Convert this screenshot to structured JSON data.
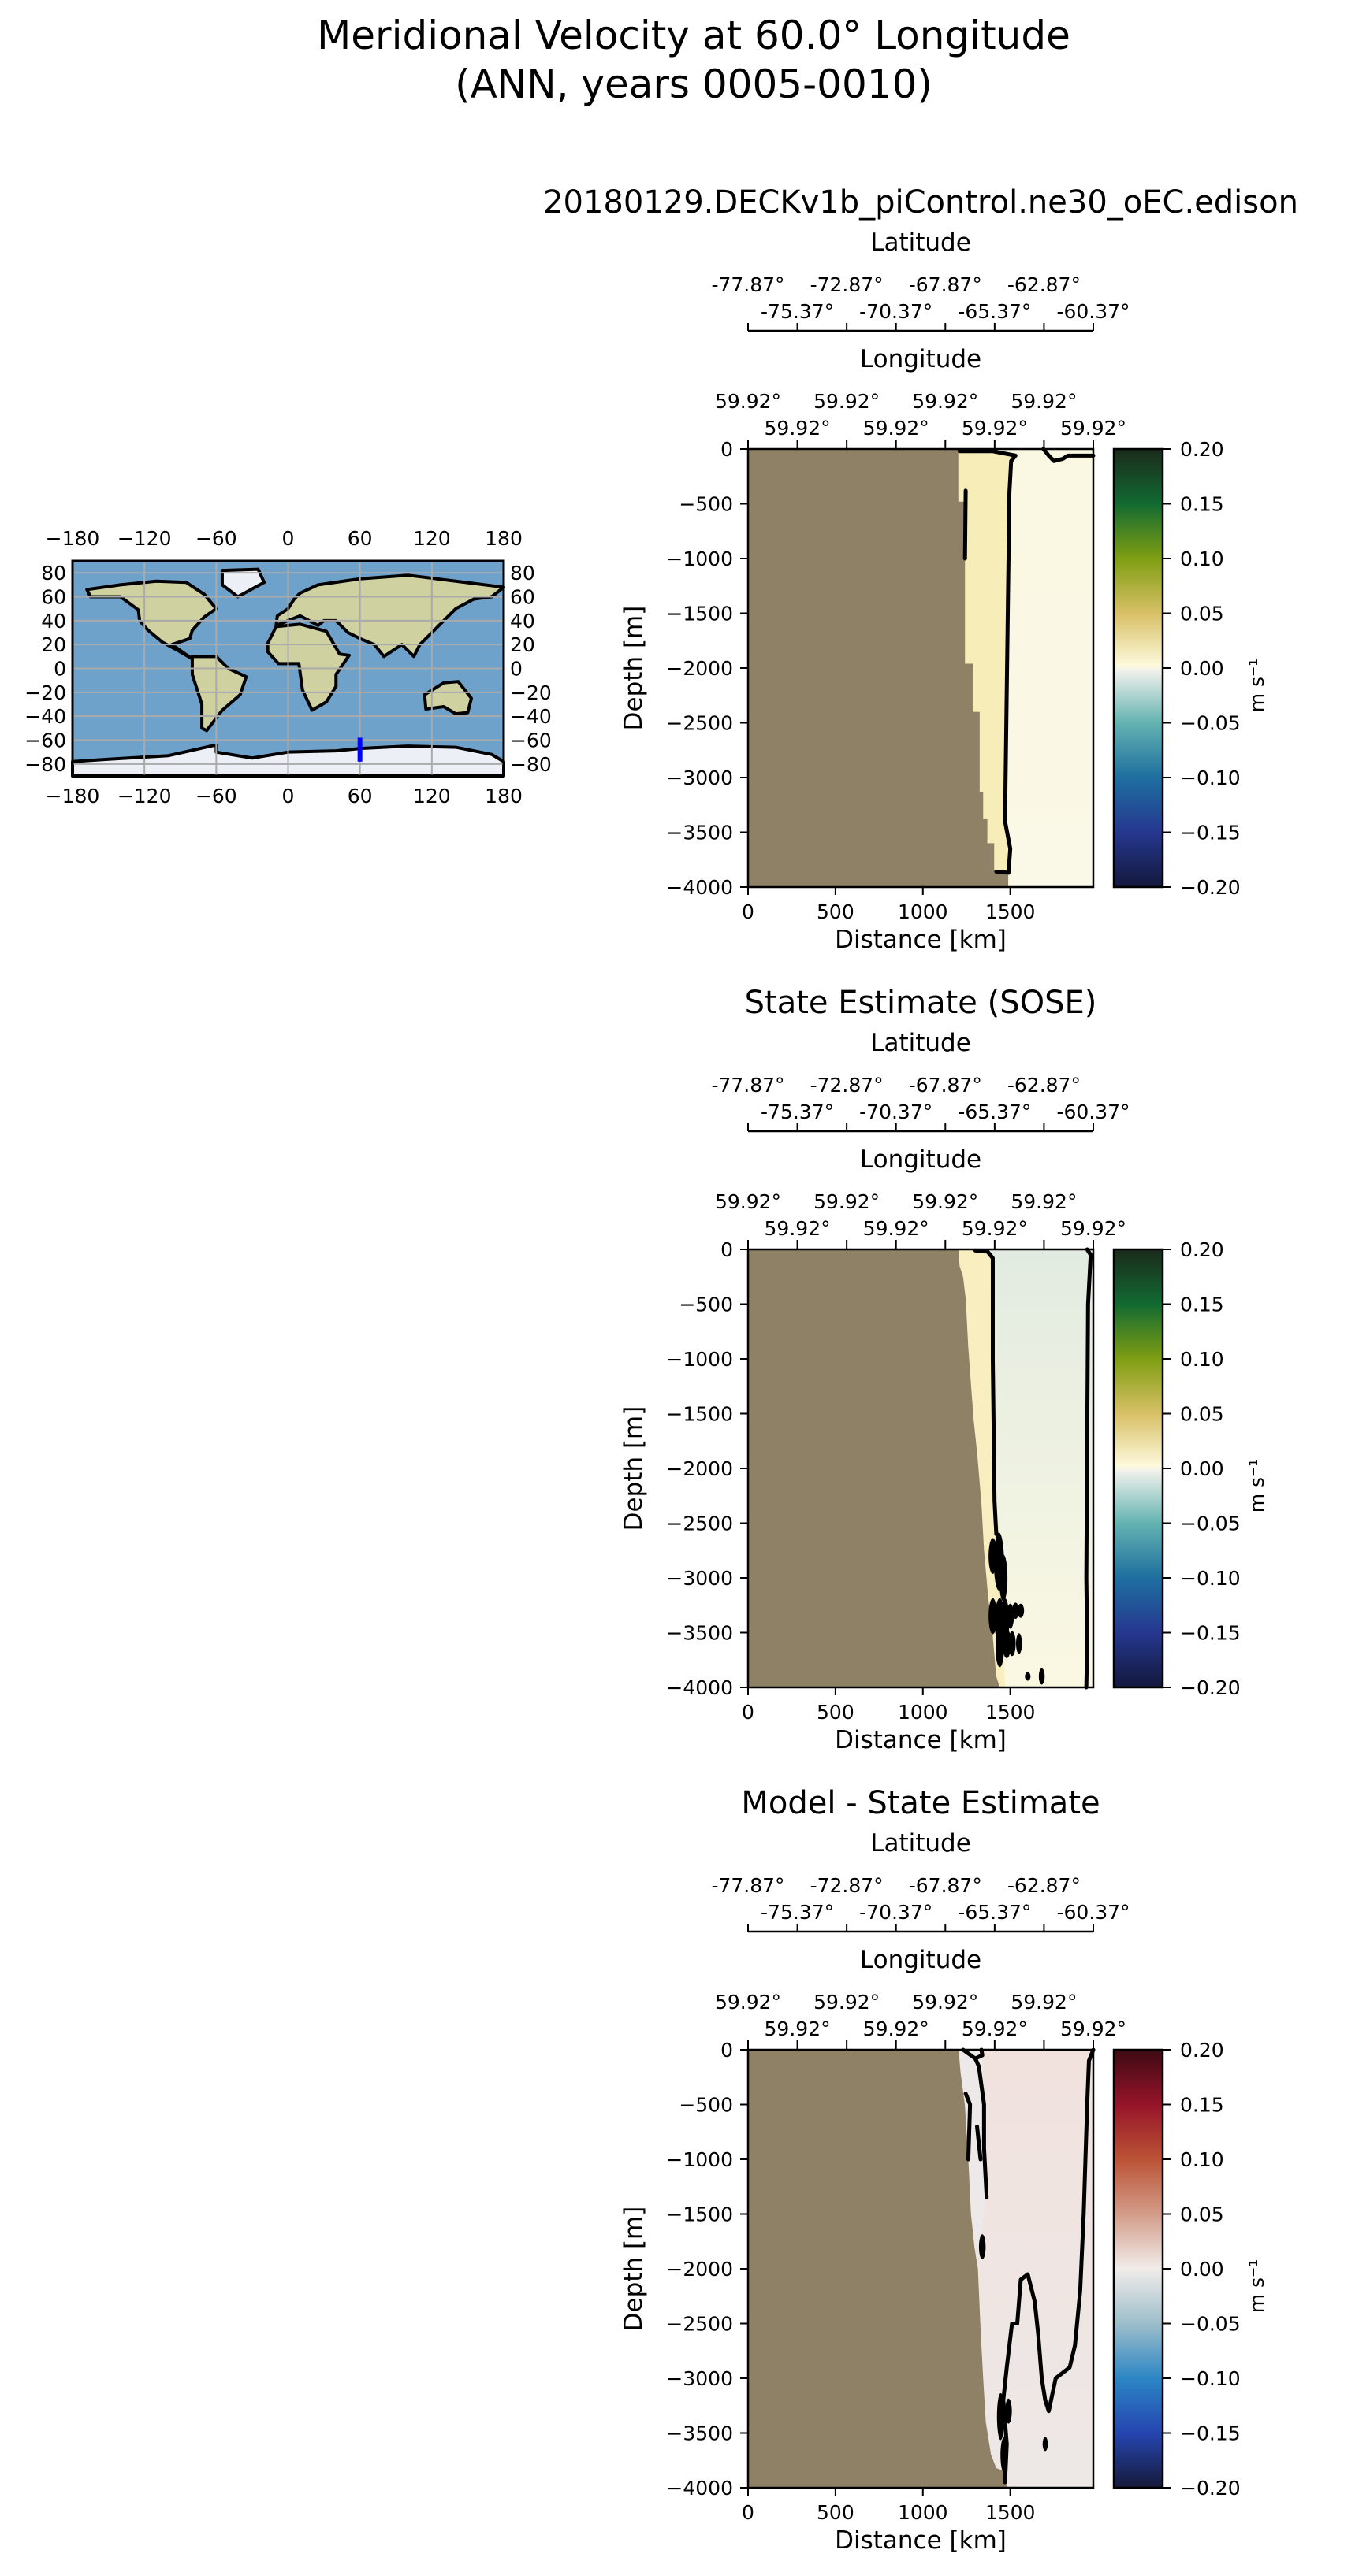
{
  "figure": {
    "title_line1": "Meridional Velocity at 60.0° Longitude",
    "title_line2": "(ANN, years 0005-0010)"
  },
  "chart_data": [
    {
      "type": "map",
      "xticks": [
        "−180",
        "−120",
        "−60",
        "0",
        "60",
        "120",
        "180"
      ],
      "xtick_values": [
        -180,
        -120,
        -60,
        0,
        60,
        120,
        180
      ],
      "yticks": [
        "80",
        "60",
        "40",
        "20",
        "0",
        "−20",
        "−40",
        "−60",
        "−80"
      ],
      "ytick_values": [
        80,
        60,
        40,
        20,
        0,
        -20,
        -40,
        -60,
        -80
      ],
      "xlim": [
        -180,
        180
      ],
      "ylim": [
        -90,
        90
      ],
      "grid": true,
      "section": {
        "lon": 60,
        "lat_start": -58,
        "lat_end": -78,
        "color": "#0000ff"
      }
    },
    {
      "type": "heatmap",
      "title": "20180129.DECKv1b_piControl.ne30_oEC.edison",
      "lat_label": "Latitude",
      "lat_ticks": [
        "-77.87°",
        "-75.37°",
        "-72.87°",
        "-70.37°",
        "-67.87°",
        "-65.37°",
        "-62.87°",
        "-60.37°"
      ],
      "lon_label": "Longitude",
      "lon_ticks": [
        "59.92°",
        "59.92°",
        "59.92°",
        "59.92°",
        "59.92°",
        "59.92°",
        "59.92°",
        "59.92°"
      ],
      "xlabel": "Distance [km]",
      "ylabel": "Depth [m]",
      "xticks": [
        0,
        500,
        1000,
        1500
      ],
      "yticks": [
        0,
        -500,
        -1000,
        -1500,
        -2000,
        -2500,
        -3000,
        -3500,
        -4000
      ],
      "xlim": [
        0,
        1975
      ],
      "ylim": [
        -4000,
        0
      ],
      "colorbar": {
        "label": "m s⁻¹",
        "ticks": [
          "0.20",
          "0.15",
          "0.10",
          "0.05",
          "0.00",
          "−0.05",
          "−0.10",
          "−0.15",
          "−0.20"
        ],
        "range": [
          -0.2,
          0.2
        ],
        "colormap": [
          [
            -0.2,
            "#13183c"
          ],
          [
            -0.15,
            "#26378f"
          ],
          [
            -0.1,
            "#1e6fa0"
          ],
          [
            -0.05,
            "#64b3b1"
          ],
          [
            -0.002,
            "#f1f1ec"
          ],
          [
            0.002,
            "#fdf9dc"
          ],
          [
            0.05,
            "#d8c066"
          ],
          [
            0.1,
            "#7f9e13"
          ],
          [
            0.15,
            "#126a31"
          ],
          [
            0.2,
            "#1b2a1c"
          ]
        ]
      },
      "land_color": "#8f8166",
      "ocean_top_color": "#faf7e2",
      "ocean_bottom_color": "#faf8e6",
      "zone_color": "#f7edb9",
      "land_edge": [
        [
          1203,
          0
        ],
        [
          1203,
          -480
        ],
        [
          1241,
          -480
        ],
        [
          1241,
          -1960
        ],
        [
          1285,
          -1960
        ],
        [
          1285,
          -2400
        ],
        [
          1325,
          -2400
        ],
        [
          1325,
          -3130
        ],
        [
          1345,
          -3130
        ],
        [
          1345,
          -3380
        ],
        [
          1369,
          -3380
        ],
        [
          1369,
          -3600
        ],
        [
          1408,
          -3600
        ],
        [
          1408,
          -3850
        ],
        [
          1488,
          -3850
        ],
        [
          1488,
          -4000
        ]
      ],
      "zone_edge": [
        [
          1400,
          -20
        ],
        [
          1530,
          -60
        ],
        [
          1505,
          -110
        ],
        [
          1495,
          -400
        ],
        [
          1470,
          -3400
        ],
        [
          1500,
          -3650
        ],
        [
          1490,
          -4000
        ]
      ],
      "contours": [
        [
          [
            1210,
            -20
          ],
          [
            1400,
            -20
          ],
          [
            1530,
            -60
          ],
          [
            1505,
            -110
          ],
          [
            1495,
            -400
          ],
          [
            1470,
            -3400
          ],
          [
            1500,
            -3650
          ],
          [
            1490,
            -3870
          ],
          [
            1420,
            -3860
          ]
        ],
        [
          [
            1690,
            0
          ],
          [
            1720,
            -60
          ],
          [
            1750,
            -110
          ],
          [
            1800,
            -90
          ],
          [
            1830,
            -60
          ],
          [
            1975,
            -60
          ]
        ],
        [
          [
            1241,
            -1000
          ],
          [
            1245,
            -380
          ]
        ]
      ],
      "blobs": []
    },
    {
      "type": "heatmap",
      "title": "State Estimate (SOSE)",
      "lat_label": "Latitude",
      "lat_ticks": [
        "-77.87°",
        "-75.37°",
        "-72.87°",
        "-70.37°",
        "-67.87°",
        "-65.37°",
        "-62.87°",
        "-60.37°"
      ],
      "lon_label": "Longitude",
      "lon_ticks": [
        "59.92°",
        "59.92°",
        "59.92°",
        "59.92°",
        "59.92°",
        "59.92°",
        "59.92°",
        "59.92°"
      ],
      "xlabel": "Distance [km]",
      "ylabel": "Depth [m]",
      "xticks": [
        0,
        500,
        1000,
        1500
      ],
      "yticks": [
        0,
        -500,
        -1000,
        -1500,
        -2000,
        -2500,
        -3000,
        -3500,
        -4000
      ],
      "xlim": [
        0,
        1975
      ],
      "ylim": [
        -4000,
        0
      ],
      "colorbar": {
        "label": "m s⁻¹",
        "ticks": [
          "0.20",
          "0.15",
          "0.10",
          "0.05",
          "0.00",
          "−0.05",
          "−0.10",
          "−0.15",
          "−0.20"
        ],
        "range": [
          -0.2,
          0.2
        ],
        "colormap": [
          [
            -0.2,
            "#13183c"
          ],
          [
            -0.15,
            "#26378f"
          ],
          [
            -0.1,
            "#1e6fa0"
          ],
          [
            -0.05,
            "#64b3b1"
          ],
          [
            -0.002,
            "#f1f1ec"
          ],
          [
            0.002,
            "#fdf9dc"
          ],
          [
            0.05,
            "#d8c066"
          ],
          [
            0.1,
            "#7f9e13"
          ],
          [
            0.15,
            "#126a31"
          ],
          [
            0.2,
            "#1b2a1c"
          ]
        ]
      },
      "land_color": "#8f8166",
      "ocean_top_color": "#e2ebe1",
      "ocean_bottom_color": "#fbf8e2",
      "zone_color": "#f8eec0",
      "land_edge": [
        [
          1204,
          0
        ],
        [
          1210,
          -150
        ],
        [
          1230,
          -250
        ],
        [
          1245,
          -450
        ],
        [
          1260,
          -900
        ],
        [
          1276,
          -1250
        ],
        [
          1290,
          -1550
        ],
        [
          1310,
          -1850
        ],
        [
          1335,
          -2320
        ],
        [
          1350,
          -2750
        ],
        [
          1375,
          -3200
        ],
        [
          1395,
          -3450
        ],
        [
          1420,
          -3900
        ],
        [
          1440,
          -4000
        ]
      ],
      "zone_edge": [
        [
          1370,
          -20
        ],
        [
          1400,
          -80
        ],
        [
          1400,
          -1000
        ],
        [
          1410,
          -2300
        ],
        [
          1440,
          -2600
        ],
        [
          1470,
          -4000
        ]
      ],
      "contours": [
        [
          [
            1300,
            -10
          ],
          [
            1370,
            -20
          ],
          [
            1400,
            -80
          ],
          [
            1400,
            -1000
          ],
          [
            1410,
            -2300
          ],
          [
            1420,
            -2600
          ]
        ],
        [
          [
            1940,
            0
          ],
          [
            1960,
            -50
          ],
          [
            1945,
            -500
          ],
          [
            1935,
            -3000
          ],
          [
            1940,
            -3600
          ],
          [
            1935,
            -4000
          ]
        ]
      ],
      "blobs": [
        [
          1400,
          -2800,
          15,
          150
        ],
        [
          1435,
          -2850,
          20,
          250
        ],
        [
          1460,
          -3000,
          15,
          200
        ],
        [
          1400,
          -3350,
          15,
          150
        ],
        [
          1440,
          -3400,
          20,
          200
        ],
        [
          1470,
          -3400,
          15,
          200
        ],
        [
          1500,
          -3350,
          12,
          100
        ],
        [
          1530,
          -3300,
          10,
          60
        ],
        [
          1560,
          -3300,
          10,
          50
        ],
        [
          1440,
          -3650,
          15,
          150
        ],
        [
          1480,
          -3600,
          15,
          120
        ],
        [
          1510,
          -3600,
          12,
          100
        ],
        [
          1550,
          -3600,
          8,
          80
        ],
        [
          1600,
          -3900,
          7,
          25
        ],
        [
          1680,
          -3900,
          8,
          60
        ]
      ]
    },
    {
      "type": "heatmap",
      "title": "Model - State Estimate",
      "lat_label": "Latitude",
      "lat_ticks": [
        "-77.87°",
        "-75.37°",
        "-72.87°",
        "-70.37°",
        "-67.87°",
        "-65.37°",
        "-62.87°",
        "-60.37°"
      ],
      "lon_label": "Longitude",
      "lon_ticks": [
        "59.92°",
        "59.92°",
        "59.92°",
        "59.92°",
        "59.92°",
        "59.92°",
        "59.92°",
        "59.92°"
      ],
      "xlabel": "Distance [km]",
      "ylabel": "Depth [m]",
      "xticks": [
        0,
        500,
        1000,
        1500
      ],
      "yticks": [
        0,
        -500,
        -1000,
        -1500,
        -2000,
        -2500,
        -3000,
        -3500,
        -4000
      ],
      "xlim": [
        0,
        1975
      ],
      "ylim": [
        -4000,
        0
      ],
      "colorbar": {
        "label": "m s⁻¹",
        "ticks": [
          "0.20",
          "0.15",
          "0.10",
          "0.05",
          "0.00",
          "−0.05",
          "−0.10",
          "−0.15",
          "−0.20"
        ],
        "range": [
          -0.2,
          0.2
        ],
        "colormap": [
          [
            -0.2,
            "#161a3a"
          ],
          [
            -0.15,
            "#2545b0"
          ],
          [
            -0.1,
            "#2c86c4"
          ],
          [
            -0.05,
            "#9dbecb"
          ],
          [
            0,
            "#f1ecea"
          ],
          [
            0.05,
            "#d39c89"
          ],
          [
            0.1,
            "#bb5336"
          ],
          [
            0.15,
            "#961429"
          ],
          [
            0.2,
            "#3d0a13"
          ]
        ]
      },
      "land_color": "#8f8166",
      "ocean_top_color": "#f1e2de",
      "ocean_bottom_color": "#ede8e6",
      "zone_color": "#ece9e8",
      "land_edge": [
        [
          1205,
          0
        ],
        [
          1215,
          -200
        ],
        [
          1240,
          -500
        ],
        [
          1260,
          -1000
        ],
        [
          1275,
          -1500
        ],
        [
          1295,
          -1800
        ],
        [
          1315,
          -2000
        ],
        [
          1330,
          -2550
        ],
        [
          1345,
          -3000
        ],
        [
          1360,
          -3400
        ],
        [
          1390,
          -3700
        ],
        [
          1420,
          -3820
        ],
        [
          1470,
          -3850
        ],
        [
          1480,
          -4000
        ]
      ],
      "zone_edge": [
        [
          1340,
          0
        ],
        [
          1350,
          -500
        ],
        [
          1365,
          -1350
        ],
        [
          1300,
          -2000
        ],
        [
          1330,
          -2550
        ],
        [
          1345,
          -3000
        ],
        [
          1360,
          -4000
        ]
      ],
      "contours": [
        [
          [
            1230,
            0
          ],
          [
            1300,
            -80
          ],
          [
            1340,
            -50
          ],
          [
            1335,
            0
          ]
        ],
        [
          [
            1300,
            -80
          ],
          [
            1320,
            -150
          ],
          [
            1350,
            -500
          ],
          [
            1350,
            -900
          ],
          [
            1365,
            -1350
          ]
        ],
        [
          [
            1245,
            -400
          ],
          [
            1270,
            -500
          ],
          [
            1260,
            -1000
          ]
        ],
        [
          [
            1310,
            -700
          ],
          [
            1330,
            -1000
          ]
        ],
        [
          [
            1470,
            -3950
          ],
          [
            1480,
            -3600
          ],
          [
            1460,
            -3200
          ],
          [
            1480,
            -2900
          ],
          [
            1510,
            -2500
          ],
          [
            1540,
            -2500
          ],
          [
            1560,
            -2100
          ],
          [
            1600,
            -2050
          ],
          [
            1640,
            -2300
          ],
          [
            1660,
            -2600
          ],
          [
            1680,
            -3000
          ],
          [
            1700,
            -3200
          ],
          [
            1720,
            -3300
          ],
          [
            1760,
            -3000
          ],
          [
            1800,
            -2950
          ],
          [
            1840,
            -2900
          ],
          [
            1870,
            -2700
          ],
          [
            1900,
            -2200
          ],
          [
            1920,
            -1500
          ],
          [
            1940,
            -500
          ],
          [
            1950,
            -100
          ],
          [
            1975,
            0
          ]
        ]
      ],
      "blobs": [
        [
          1445,
          -3350,
          12,
          200
        ],
        [
          1490,
          -3300,
          10,
          100
        ],
        [
          1465,
          -3700,
          12,
          150
        ],
        [
          1700,
          -3600,
          6,
          50
        ],
        [
          1340,
          -1800,
          10,
          100
        ]
      ]
    }
  ]
}
